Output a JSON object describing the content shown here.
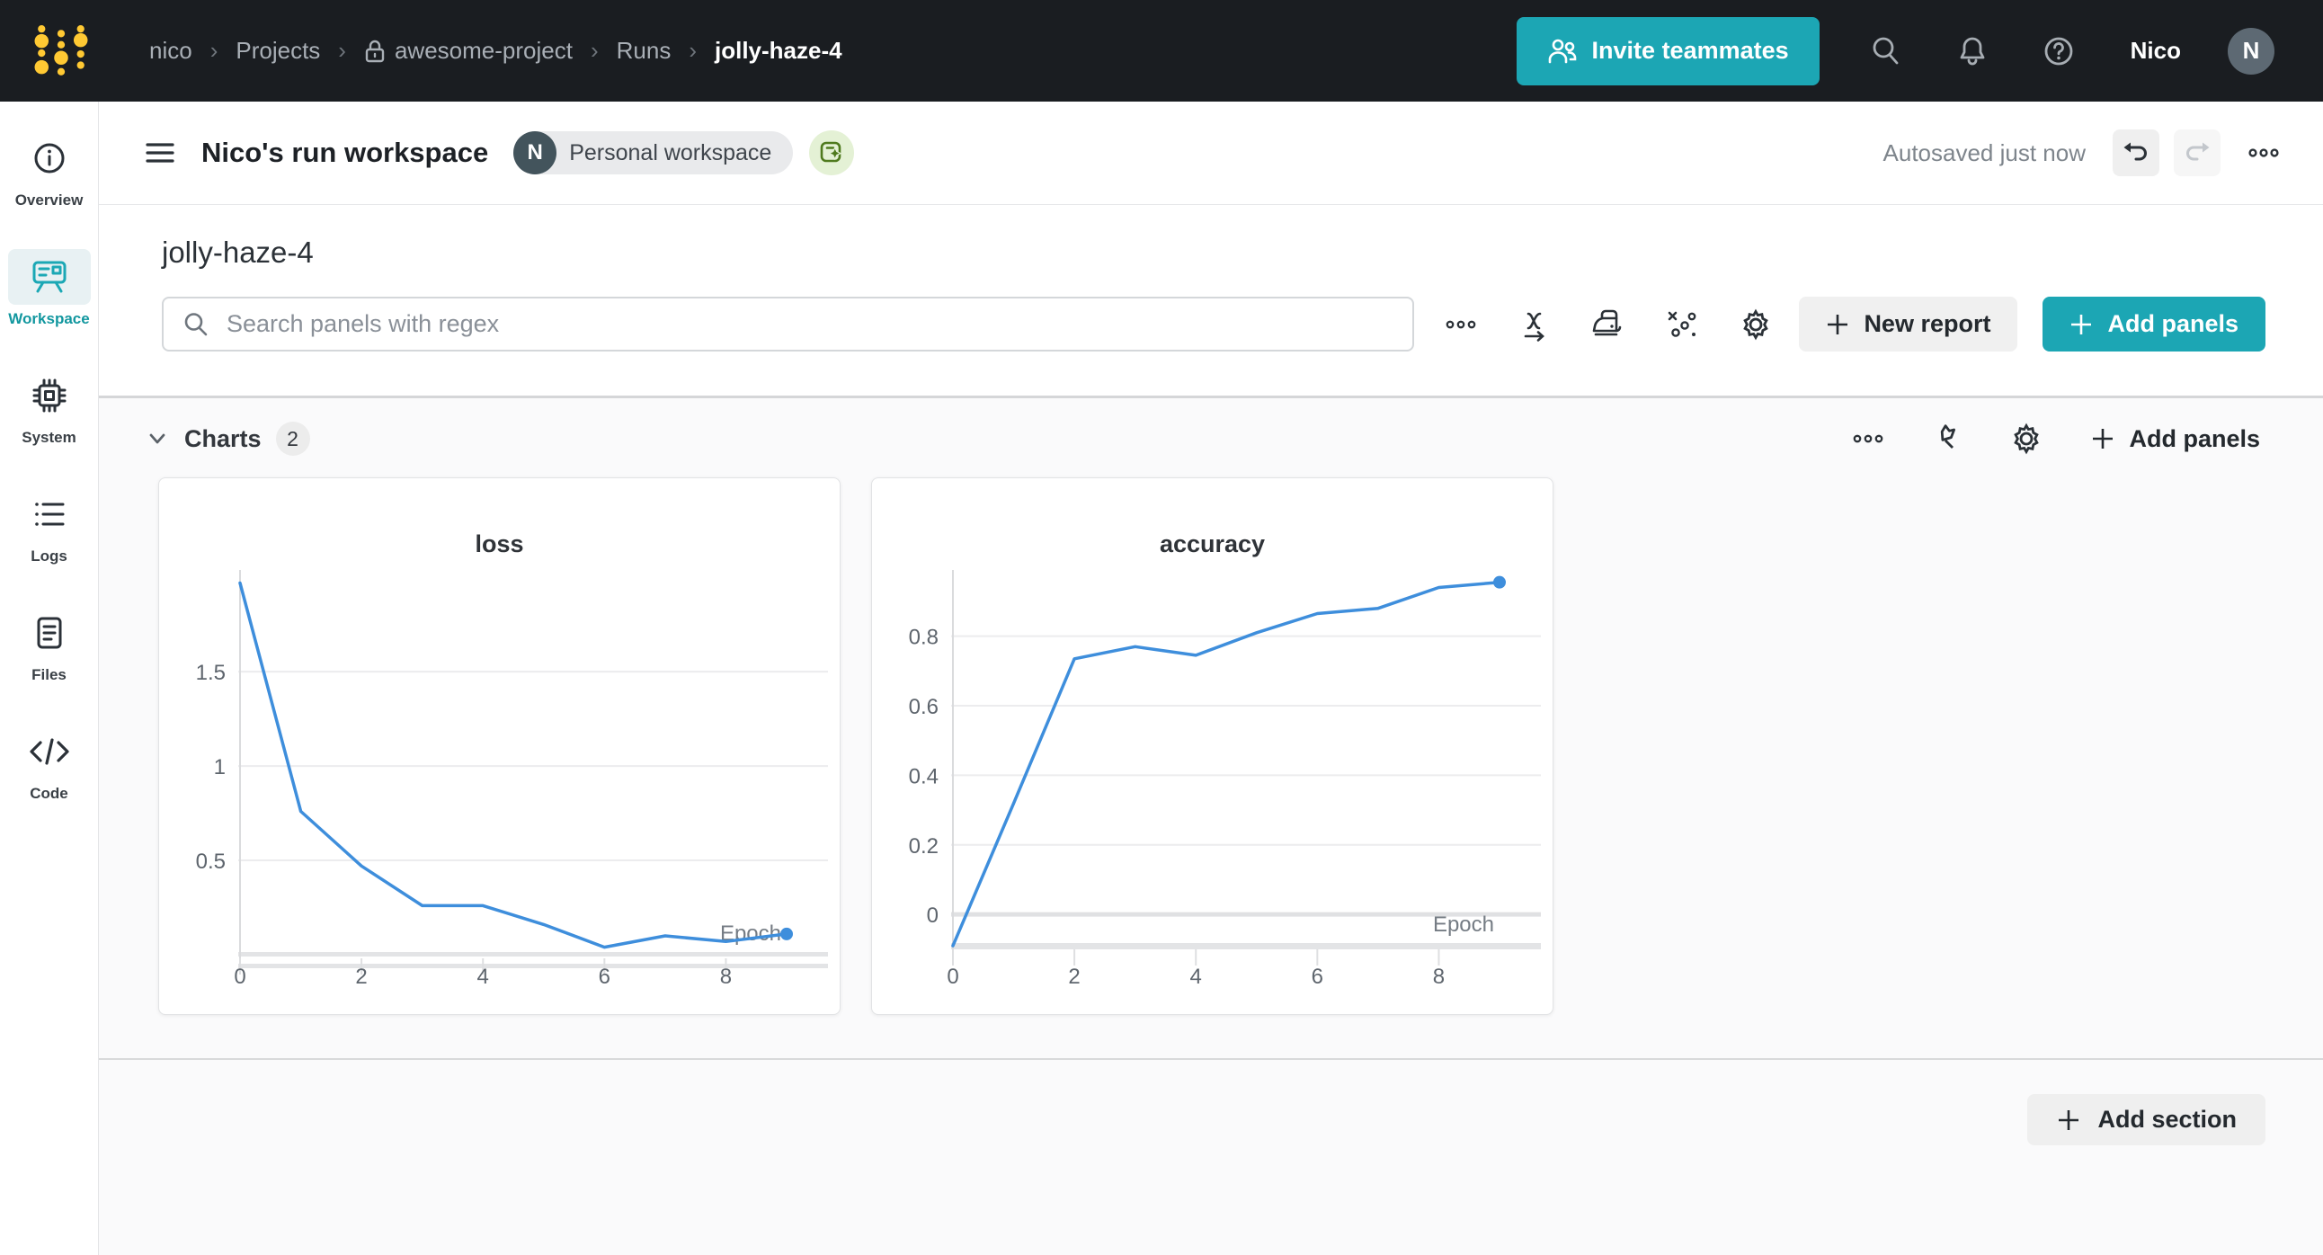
{
  "navbar": {
    "breadcrumb": [
      "nico",
      "Projects",
      "awesome-project",
      "Runs",
      "jolly-haze-4"
    ],
    "separator": "›",
    "invite_label": "Invite teammates",
    "user_name": "Nico",
    "avatar_initial": "N",
    "icons": [
      "search-icon",
      "bell-icon",
      "help-icon"
    ]
  },
  "sidebar": {
    "items": [
      {
        "label": "Overview",
        "icon": "info-circle-icon",
        "active": false
      },
      {
        "label": "Workspace",
        "icon": "workspace-board-icon",
        "active": true
      },
      {
        "label": "System",
        "icon": "cpu-chip-icon",
        "active": false
      },
      {
        "label": "Logs",
        "icon": "list-icon",
        "active": false
      },
      {
        "label": "Files",
        "icon": "document-icon",
        "active": false
      },
      {
        "label": "Code",
        "icon": "code-icon",
        "active": false
      }
    ]
  },
  "workspace_header": {
    "title": "Nico's run workspace",
    "badge_initial": "N",
    "badge_label": "Personal workspace",
    "autosave_status": "Autosaved just now",
    "icons": [
      "hamburger-icon",
      "auto-panel-sparkle-icon",
      "undo-icon",
      "redo-icon",
      "overflow-icon"
    ]
  },
  "run_toolbar": {
    "run_title": "jolly-haze-4",
    "search_placeholder": "Search panels with regex",
    "icons": [
      "overflow-icon",
      "x-axis-icon",
      "smoothing-iron-icon",
      "outliers-scatter-icon",
      "settings-gear-icon"
    ],
    "new_report_label": "New report",
    "add_panels_label": "Add panels"
  },
  "charts_section": {
    "title": "Charts",
    "count": "2",
    "icons": [
      "overflow-icon",
      "pin-icon",
      "settings-gear-icon"
    ],
    "add_panels_label": "Add panels"
  },
  "footer": {
    "add_section_label": "Add section"
  },
  "colors": {
    "brand_teal": "#1CA6B4",
    "logo_yellow": "#FFC933",
    "navbar_bg": "#1A1D21",
    "chart_line_blue": "#3E8EDC",
    "active_sidebar_teal": "#12979F"
  },
  "chart_data": [
    {
      "type": "line",
      "title": "loss",
      "xlabel": "Epoch",
      "x": [
        0,
        1,
        2,
        3,
        4,
        5,
        6,
        7,
        8,
        9
      ],
      "values": [
        1.97,
        0.76,
        0.47,
        0.26,
        0.26,
        0.16,
        0.04,
        0.1,
        0.07,
        0.11
      ],
      "xticks": [
        0,
        2,
        4,
        6,
        8
      ],
      "yticks": [
        0.5,
        1,
        1.5
      ],
      "xlim": [
        0,
        9
      ],
      "ylim": [
        0,
        2.02
      ],
      "grid": true,
      "legend": "none",
      "line_color": "#3E8EDC",
      "end_dot": true
    },
    {
      "type": "line",
      "title": "accuracy",
      "xlabel": "Epoch",
      "x": [
        0,
        1,
        2,
        3,
        4,
        5,
        6,
        7,
        8,
        9
      ],
      "values": [
        -0.09,
        0.32,
        0.735,
        0.77,
        0.745,
        0.81,
        0.865,
        0.88,
        0.94,
        0.955
      ],
      "xticks": [
        0,
        2,
        4,
        6,
        8
      ],
      "yticks": [
        0,
        0.2,
        0.4,
        0.6,
        0.8
      ],
      "xlim": [
        0,
        9
      ],
      "ylim": [
        -0.09,
        0.98
      ],
      "grid": true,
      "legend": "none",
      "line_color": "#3E8EDC",
      "end_dot": true
    }
  ]
}
